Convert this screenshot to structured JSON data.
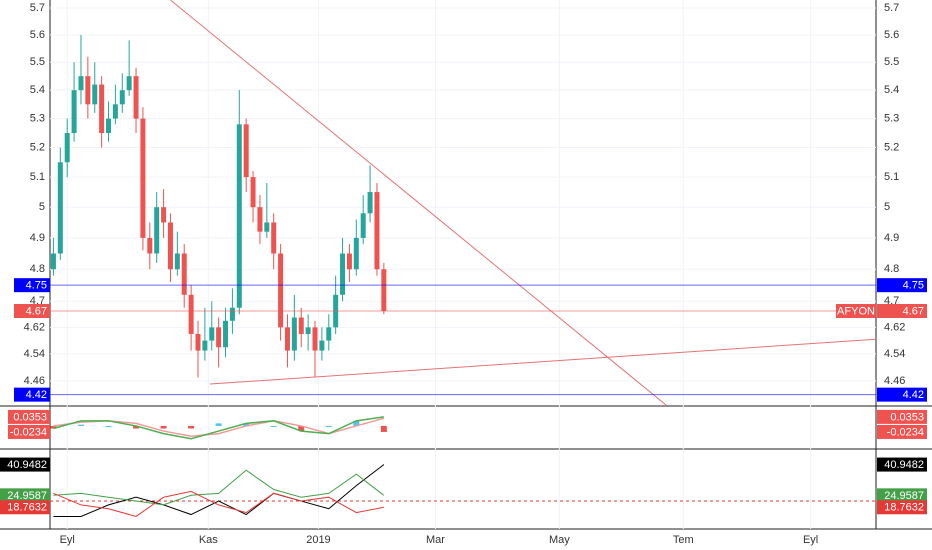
{
  "chart_data": [
    {
      "type": "candlestick",
      "symbol": "AFYON",
      "log": true,
      "grid": true,
      "up_color": "#26a69a",
      "down_color": "#ef5350",
      "xlim": [
        0,
        240
      ],
      "xticks": [
        {
          "value": 5,
          "label": "Eyl"
        },
        {
          "value": 46,
          "label": "Kas"
        },
        {
          "value": 78,
          "label": "2019"
        },
        {
          "value": 112,
          "label": "Mar"
        },
        {
          "value": 148,
          "label": "May"
        },
        {
          "value": 184,
          "label": "Tem"
        },
        {
          "value": 221,
          "label": "Eyl"
        }
      ],
      "ylim": [
        4.39,
        5.73
      ],
      "yticks": [
        5.7,
        5.6,
        5.5,
        5.4,
        5.3,
        5.2,
        5.1,
        5.0,
        4.9,
        4.8,
        4.7,
        4.62,
        4.54,
        4.46
      ],
      "x": [
        1,
        3,
        5,
        7,
        9,
        11,
        13,
        15,
        17,
        19,
        21,
        23,
        25,
        27,
        29,
        31,
        33,
        35,
        37,
        39,
        41,
        43,
        45,
        47,
        49,
        51,
        53,
        55,
        57,
        59,
        61,
        63,
        65,
        67,
        69,
        71,
        73,
        75,
        77,
        79,
        81,
        83,
        85,
        87,
        89,
        91,
        93,
        95,
        97
      ],
      "open": [
        4.8,
        4.85,
        5.15,
        5.25,
        5.4,
        5.45,
        5.35,
        5.42,
        5.25,
        5.3,
        5.35,
        5.4,
        5.45,
        5.3,
        4.9,
        4.85,
        5.0,
        4.95,
        4.8,
        4.85,
        4.72,
        4.6,
        4.55,
        4.58,
        4.62,
        4.56,
        4.64,
        4.68,
        5.28,
        5.1,
        5.0,
        4.92,
        4.95,
        4.85,
        4.62,
        4.55,
        4.65,
        4.6,
        4.62,
        4.55,
        4.58,
        4.62,
        4.72,
        4.85,
        4.8,
        4.9,
        4.98,
        5.05,
        4.8
      ],
      "high": [
        4.9,
        5.2,
        5.3,
        5.5,
        5.6,
        5.52,
        5.5,
        5.45,
        5.36,
        5.42,
        5.46,
        5.58,
        5.48,
        5.34,
        4.95,
        5.05,
        5.06,
        4.98,
        4.92,
        4.88,
        4.75,
        4.64,
        4.68,
        4.7,
        4.65,
        4.68,
        4.74,
        5.4,
        5.3,
        5.12,
        5.04,
        5.08,
        4.98,
        4.88,
        4.66,
        4.72,
        4.68,
        4.66,
        4.64,
        4.62,
        4.66,
        4.78,
        4.9,
        4.88,
        4.96,
        5.04,
        5.14,
        5.08,
        4.82
      ],
      "low": [
        4.78,
        4.83,
        5.1,
        5.22,
        5.35,
        5.3,
        5.32,
        5.2,
        5.22,
        5.28,
        5.32,
        5.38,
        5.25,
        4.86,
        4.8,
        4.82,
        4.9,
        4.76,
        4.78,
        4.68,
        4.55,
        4.47,
        4.52,
        4.55,
        4.5,
        4.53,
        4.6,
        4.66,
        5.05,
        4.95,
        4.88,
        4.9,
        4.8,
        4.58,
        4.5,
        4.52,
        4.56,
        4.55,
        4.47,
        4.52,
        4.55,
        4.6,
        4.7,
        4.76,
        4.78,
        4.88,
        4.95,
        4.78,
        4.66
      ],
      "close": [
        4.85,
        5.15,
        5.25,
        5.4,
        5.45,
        5.35,
        5.42,
        5.25,
        5.3,
        5.35,
        5.4,
        5.45,
        5.3,
        4.9,
        4.85,
        5.0,
        4.95,
        4.8,
        4.85,
        4.72,
        4.6,
        4.55,
        4.58,
        4.62,
        4.56,
        4.64,
        4.68,
        5.28,
        5.1,
        5.0,
        4.92,
        4.95,
        4.85,
        4.62,
        4.55,
        4.65,
        4.6,
        4.62,
        4.55,
        4.58,
        4.62,
        4.72,
        4.85,
        4.8,
        4.9,
        4.98,
        5.05,
        4.8,
        4.67
      ],
      "price_lines": [
        {
          "value": 4.75,
          "color": "#0000ff"
        },
        {
          "value": 4.67,
          "color": "#ef5350"
        },
        {
          "value": 4.42,
          "color": "#0000ff"
        }
      ],
      "trendlines": [
        {
          "x": [
            35,
            179
          ],
          "y": [
            5.73,
            4.39
          ],
          "color": "#e57373"
        },
        {
          "x": [
            46.5,
            240
          ],
          "y": [
            4.451,
            4.584
          ],
          "color": "#e57373"
        }
      ]
    },
    {
      "type": "macd",
      "x": [
        1,
        9,
        17,
        25,
        33,
        41,
        49,
        57,
        65,
        73,
        81,
        89,
        97
      ],
      "ylim": [
        -0.086,
        0.07
      ],
      "series": [
        {
          "style": "bar",
          "color": "#4fc3f7",
          "negative_color": "#ef5350",
          "values": [
            -0.01,
            0.005,
            0.0,
            -0.01,
            -0.01,
            -0.01,
            0.01,
            0.01,
            0.0,
            -0.02,
            0.0,
            0.02,
            -0.0234
          ]
        },
        {
          "style": "line",
          "color": "#ef9a9a",
          "values": [
            0.0,
            0.015,
            0.02,
            0.01,
            -0.02,
            -0.04,
            -0.03,
            0.0,
            0.02,
            0.0,
            -0.03,
            0.0,
            0.03
          ]
        },
        {
          "style": "line",
          "color": "#4caf50",
          "values": [
            -0.01,
            0.02,
            0.02,
            0.0,
            -0.03,
            -0.05,
            -0.02,
            0.01,
            0.02,
            -0.02,
            -0.03,
            0.02,
            0.0353
          ]
        }
      ]
    },
    {
      "type": "line",
      "x": [
        1,
        9,
        17,
        25,
        33,
        41,
        49,
        57,
        65,
        73,
        81,
        89,
        97
      ],
      "ylim": [
        8,
        48
      ],
      "levels": [
        22
      ],
      "series": [
        {
          "color": "#000000",
          "values": [
            14,
            14,
            20,
            24,
            20,
            15,
            22,
            15,
            26,
            22,
            18,
            30,
            40.9482
          ]
        },
        {
          "color": "#43a047",
          "values": [
            25,
            26,
            24,
            22,
            20,
            25,
            26,
            38,
            28,
            24,
            26,
            36,
            24.9587
          ]
        },
        {
          "color": "#e53935",
          "values": [
            26,
            20,
            18,
            14,
            24,
            27,
            20,
            16,
            26,
            22,
            24,
            16,
            18.7632
          ]
        }
      ]
    }
  ]
}
